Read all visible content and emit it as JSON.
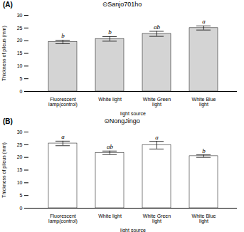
{
  "chart_data": [
    {
      "type": "bar",
      "panel_label": "(A)",
      "title": "⊙Sanjo701ho",
      "categories": [
        "Fluorescent\nlamp(control)",
        "White light",
        "White Green\nlight",
        "White Blue\nlight"
      ],
      "values": [
        19.5,
        20.7,
        22.7,
        25.0
      ],
      "errors": [
        0.7,
        0.9,
        1.0,
        0.8
      ],
      "annotations": [
        "b",
        "b",
        "ab",
        "a"
      ],
      "color": "#d4d4d4",
      "ylabel": "Thickness of pileus (mm)",
      "xlabel": "light source",
      "ylim": [
        0,
        30
      ],
      "yticks": [
        0,
        5,
        10,
        15,
        20,
        25,
        30
      ],
      "grid": false
    },
    {
      "type": "bar",
      "panel_label": "(B)",
      "title": "⊙NongJingo",
      "categories": [
        "Fluorescent\nlamp(control)",
        "White light",
        "White Green\nlight",
        "White Blue\nlight"
      ],
      "values": [
        25.5,
        21.8,
        24.8,
        20.5
      ],
      "errors": [
        0.9,
        0.7,
        1.5,
        0.5
      ],
      "annotations": [
        "a",
        "ab",
        "a",
        "b"
      ],
      "color": "#ffffff",
      "ylabel": "Thickness of pileus (mm)",
      "xlabel": "light source",
      "ylim": [
        0,
        30
      ],
      "yticks": [
        0,
        5,
        10,
        15,
        20,
        25,
        30
      ],
      "grid": false
    }
  ]
}
